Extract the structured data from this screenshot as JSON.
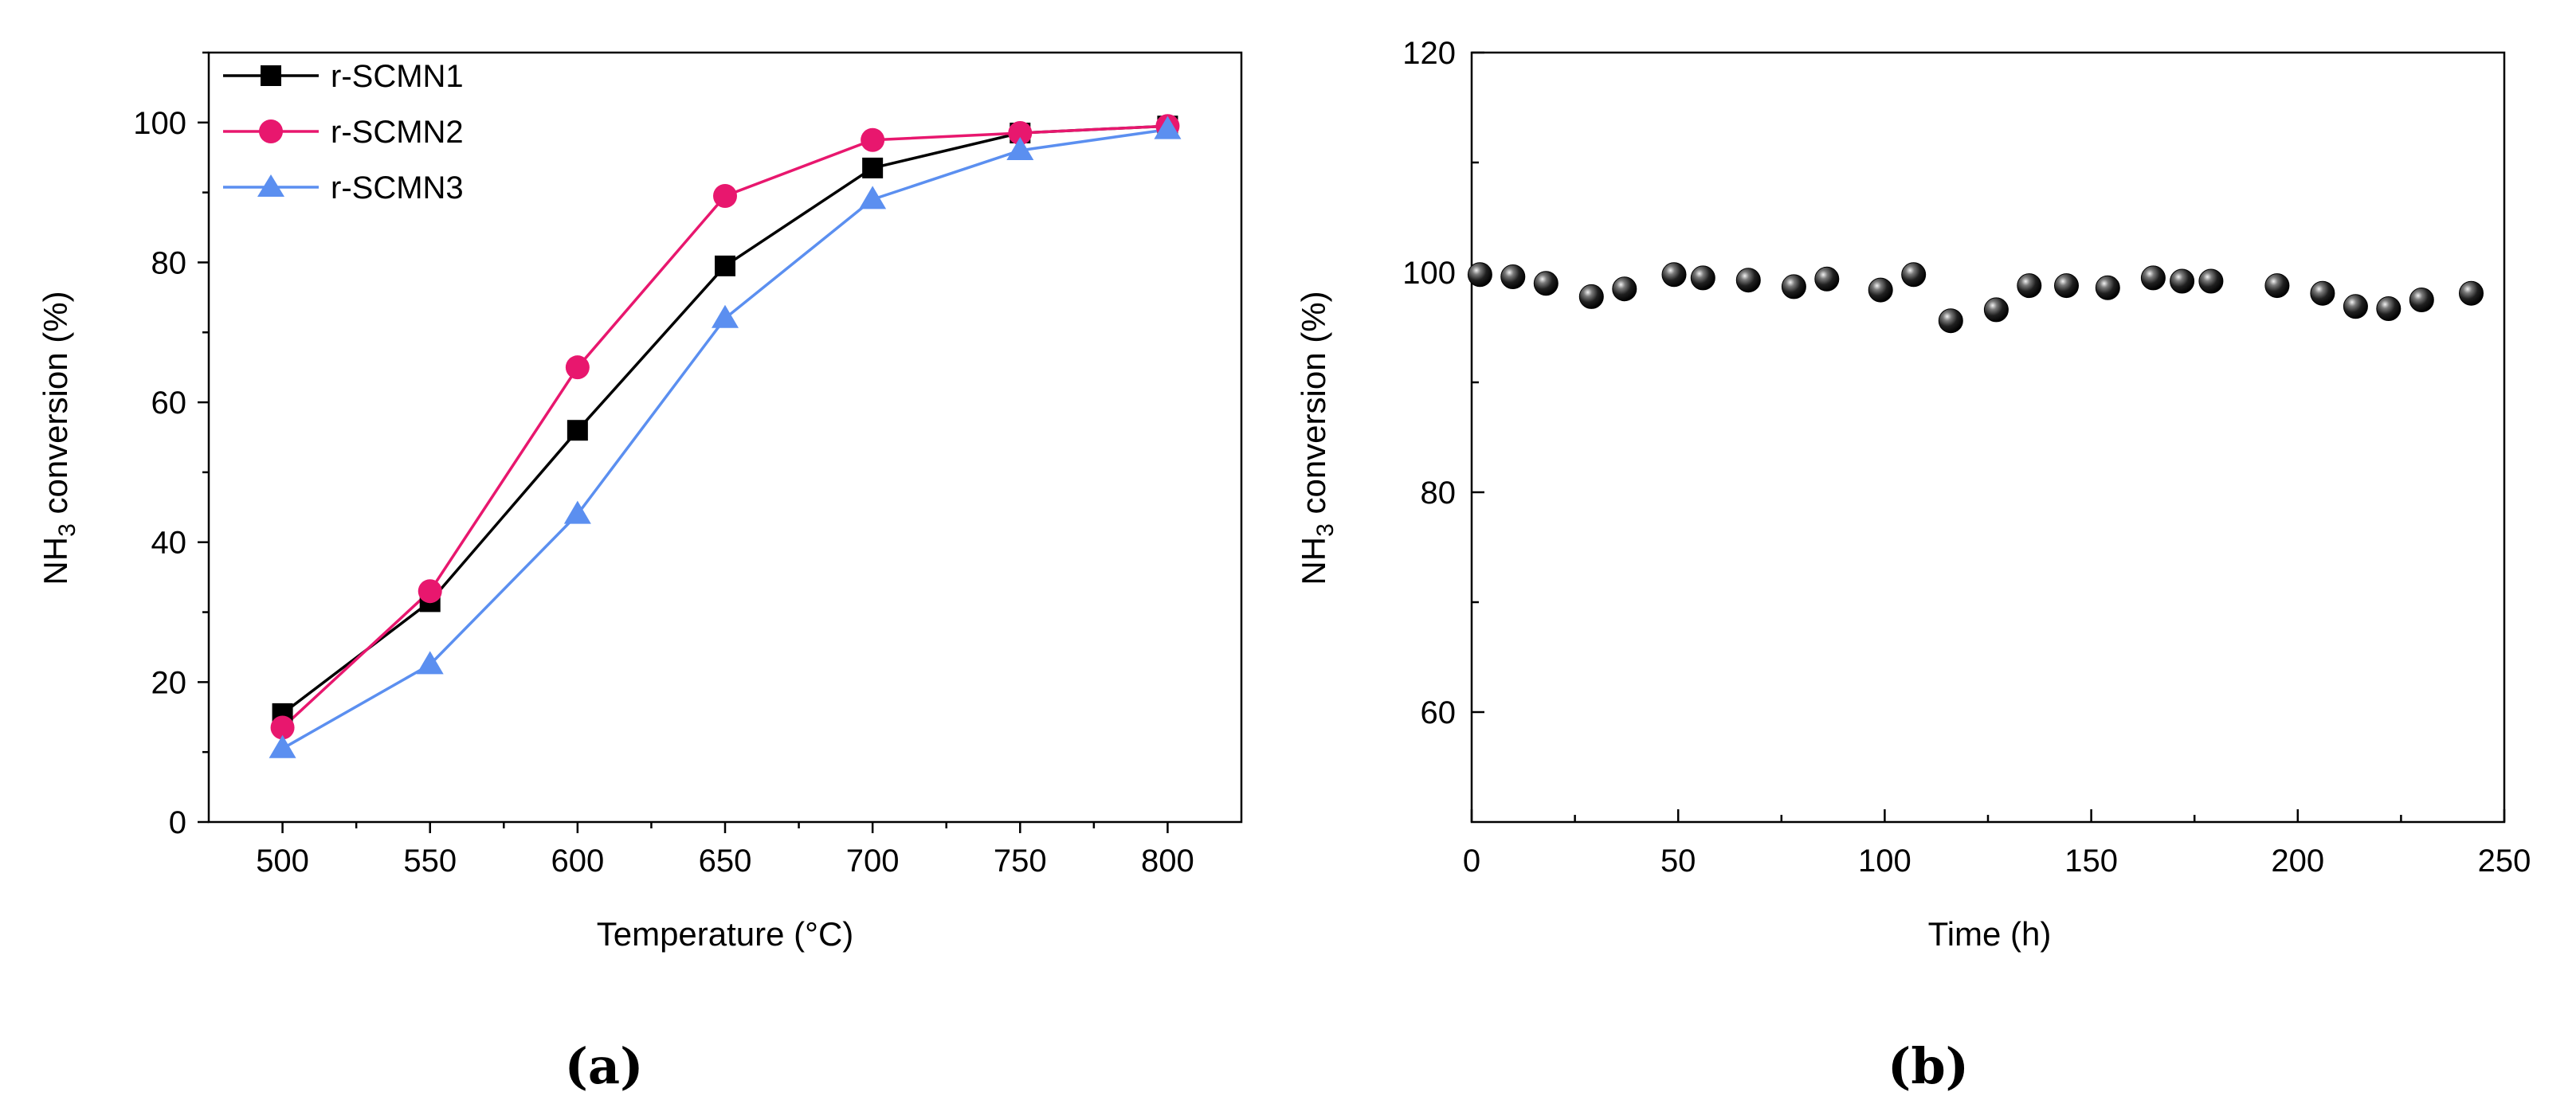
{
  "chart_data": [
    {
      "type": "line",
      "panel_label": "(a)",
      "title": "",
      "xlabel": "Temperature (°C)",
      "ylabel": {
        "base": "NH",
        "sub": "3",
        "rest": " conversion (%)"
      },
      "xlim": [
        475,
        825
      ],
      "ylim": [
        0,
        110
      ],
      "x": [
        500,
        550,
        600,
        650,
        700,
        750,
        800
      ],
      "xticks": [
        500,
        550,
        600,
        650,
        700,
        750,
        800
      ],
      "yticks": [
        0,
        20,
        40,
        60,
        80,
        100
      ],
      "legend_position": "top-left",
      "series": [
        {
          "name": "r-SCMN1",
          "marker": "square",
          "color": "#000000",
          "values": [
            15.5,
            31.5,
            56,
            79.5,
            93.5,
            98.5,
            99.5
          ]
        },
        {
          "name": "r-SCMN2",
          "marker": "circle",
          "color": "#e8176e",
          "values": [
            13.5,
            33,
            65,
            89.5,
            97.5,
            98.5,
            99.5
          ]
        },
        {
          "name": "r-SCMN3",
          "marker": "triangle",
          "color": "#5b8ff0",
          "values": [
            10.5,
            22.5,
            44,
            72,
            89,
            96,
            99
          ]
        }
      ]
    },
    {
      "type": "scatter",
      "panel_label": "(b)",
      "title": "",
      "xlabel": "Time (h)",
      "ylabel": {
        "base": "NH",
        "sub": "3",
        "rest": " conversion (%)"
      },
      "xlim": [
        0,
        250
      ],
      "ylim": [
        50,
        120
      ],
      "xticks": [
        0,
        50,
        100,
        150,
        200,
        250
      ],
      "yticks": [
        60,
        80,
        100,
        120
      ],
      "marker": "sphere",
      "color": "#000000",
      "series": [
        {
          "name": "NH3 conversion",
          "x": [
            2,
            10,
            18,
            29,
            37,
            49,
            56,
            67,
            78,
            86,
            99,
            107,
            116,
            127,
            135,
            144,
            154,
            165,
            172,
            179,
            195,
            206,
            214,
            222,
            230,
            242
          ],
          "y": [
            99.8,
            99.6,
            99.0,
            97.8,
            98.5,
            99.8,
            99.5,
            99.3,
            98.7,
            99.4,
            98.4,
            99.8,
            95.6,
            96.6,
            98.8,
            98.8,
            98.6,
            99.5,
            99.2,
            99.2,
            98.8,
            98.1,
            96.9,
            96.7,
            97.5,
            98.1
          ]
        }
      ]
    }
  ]
}
